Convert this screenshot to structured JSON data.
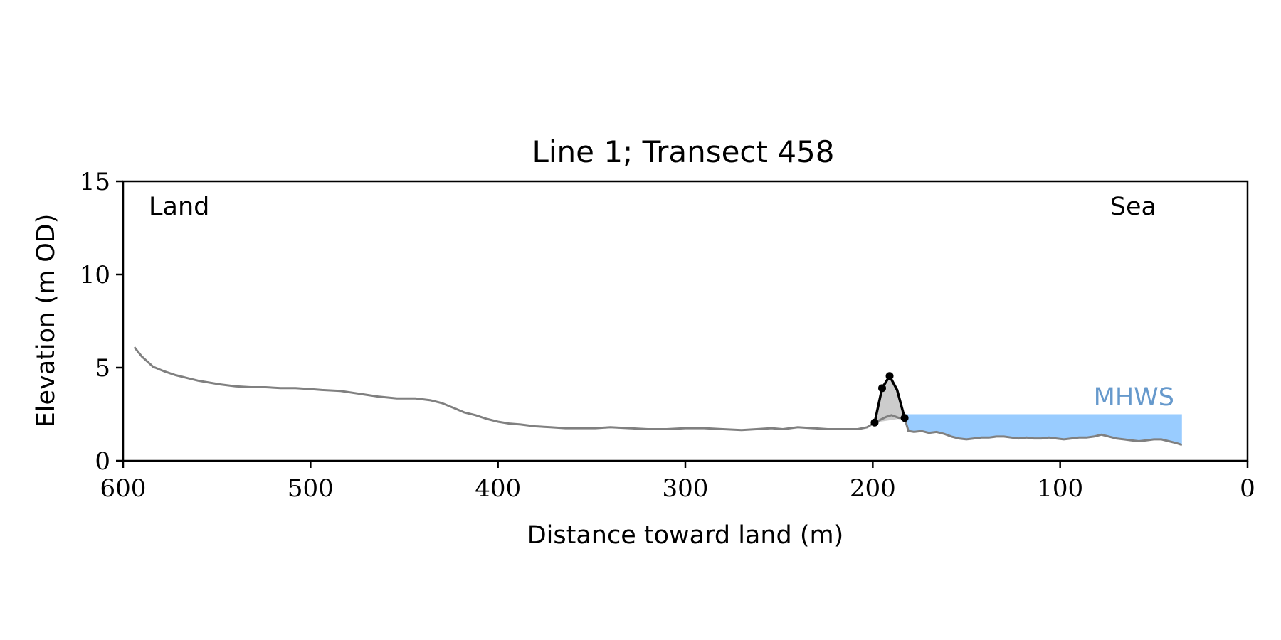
{
  "chart_data": {
    "type": "line",
    "title": "Line 1; Transect 458",
    "xlabel": "Distance toward land (m)",
    "ylabel": "Elevation (m OD)",
    "xlim": [
      600,
      0
    ],
    "ylim": [
      0,
      15
    ],
    "xticks": [
      600,
      500,
      400,
      300,
      200,
      100,
      0
    ],
    "yticks": [
      0,
      5,
      10,
      15
    ],
    "grid": false,
    "annotations": {
      "left": "Land",
      "right": "Sea",
      "water_label": "MHWS"
    },
    "water_level": {
      "label": "MHWS",
      "elevation": 2.5,
      "x_from": 183,
      "x_to": 35,
      "color": "#99ccff",
      "label_color": "#6699cc"
    },
    "profile": {
      "color": "#808080",
      "x": [
        594,
        590,
        584,
        578,
        572,
        566,
        560,
        554,
        548,
        540,
        532,
        524,
        516,
        508,
        500,
        494,
        484,
        474,
        464,
        454,
        444,
        436,
        430,
        424,
        418,
        412,
        406,
        400,
        394,
        388,
        380,
        372,
        364,
        356,
        348,
        340,
        330,
        320,
        310,
        300,
        290,
        280,
        270,
        262,
        254,
        248,
        240,
        232,
        224,
        216,
        208,
        203,
        199,
        196,
        193,
        190,
        186,
        183,
        181,
        178,
        174,
        170,
        166,
        162,
        158,
        154,
        150,
        146,
        142,
        138,
        134,
        130,
        126,
        122,
        118,
        114,
        110,
        106,
        102,
        98,
        94,
        90,
        86,
        82,
        78,
        74,
        70,
        66,
        62,
        58,
        54,
        50,
        46,
        42,
        38,
        35
      ],
      "y": [
        6.1,
        5.6,
        5.05,
        4.8,
        4.6,
        4.45,
        4.3,
        4.2,
        4.1,
        4.0,
        3.95,
        3.95,
        3.9,
        3.9,
        3.85,
        3.8,
        3.75,
        3.6,
        3.45,
        3.35,
        3.35,
        3.25,
        3.1,
        2.85,
        2.6,
        2.45,
        2.25,
        2.1,
        2.0,
        1.95,
        1.85,
        1.8,
        1.75,
        1.75,
        1.75,
        1.8,
        1.75,
        1.7,
        1.7,
        1.75,
        1.75,
        1.7,
        1.65,
        1.7,
        1.75,
        1.7,
        1.8,
        1.75,
        1.7,
        1.7,
        1.7,
        1.8,
        2.05,
        2.2,
        2.35,
        2.45,
        2.3,
        2.3,
        1.6,
        1.55,
        1.6,
        1.5,
        1.55,
        1.45,
        1.3,
        1.2,
        1.15,
        1.2,
        1.25,
        1.25,
        1.3,
        1.3,
        1.25,
        1.2,
        1.25,
        1.2,
        1.2,
        1.25,
        1.2,
        1.15,
        1.2,
        1.25,
        1.25,
        1.3,
        1.4,
        1.3,
        1.2,
        1.15,
        1.1,
        1.05,
        1.1,
        1.15,
        1.15,
        1.05,
        0.95,
        0.85
      ]
    },
    "dune": {
      "color": "#000000",
      "fill": "#cccccc",
      "x": [
        199,
        195,
        191,
        187,
        183
      ],
      "y": [
        2.05,
        3.9,
        4.55,
        3.8,
        2.3
      ],
      "points_x": [
        199,
        195,
        191,
        183
      ],
      "points_y": [
        2.05,
        3.9,
        4.55,
        2.3
      ]
    }
  }
}
